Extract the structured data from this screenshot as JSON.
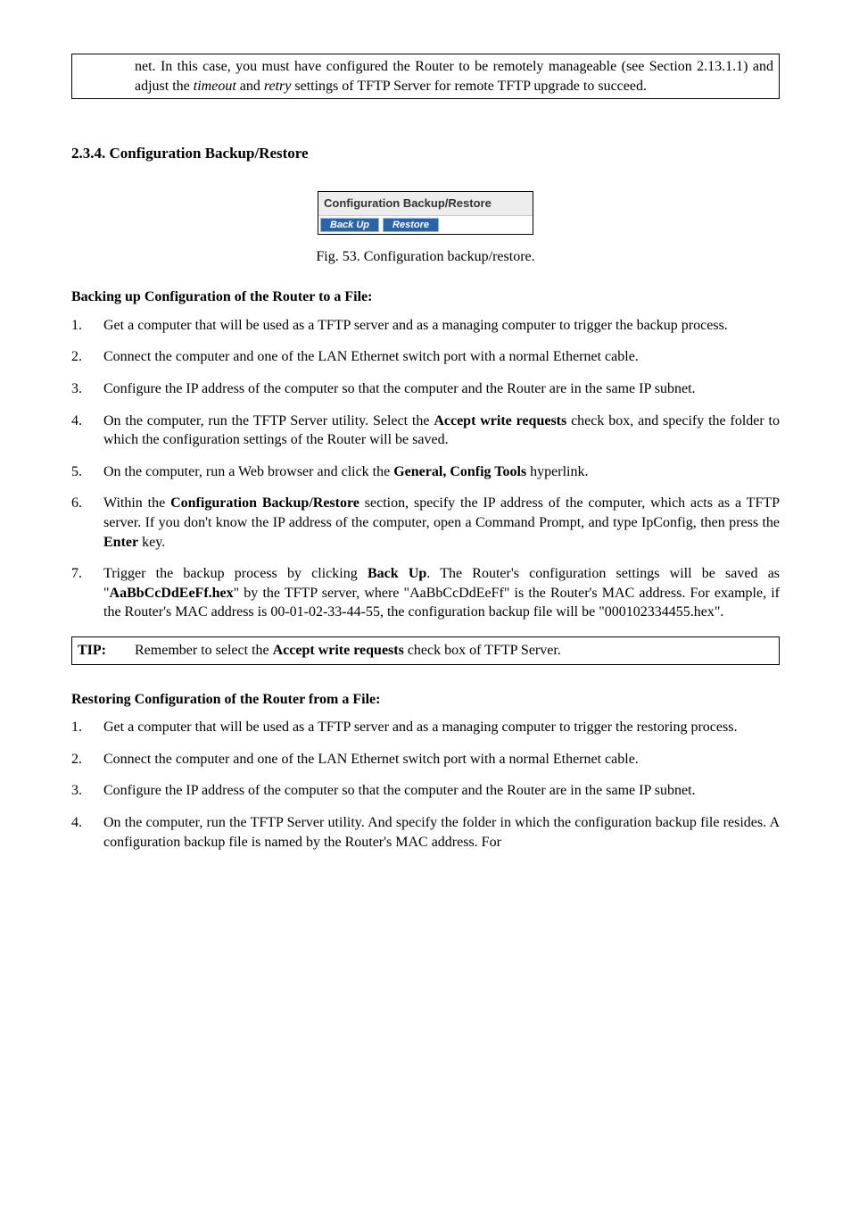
{
  "note_box": {
    "text_1": "net. In this case, you must have configured the Router to be remotely manageable (see Section 2.13.1.1) and adjust the ",
    "italic_1": "timeout",
    "text_2": " and ",
    "italic_2": "retry",
    "text_3": " settings of TFTP Server for remote TFTP upgrade to succeed."
  },
  "section_heading": "2.3.4. Configuration Backup/Restore",
  "panel": {
    "title": "Configuration Backup/Restore",
    "backup_label": "Back Up",
    "restore_label": "Restore"
  },
  "fig_caption": "Fig. 53. Configuration backup/restore.",
  "backup_heading": "Backing up Configuration of the Router to a File:",
  "backup_steps": [
    {
      "parts": [
        {
          "t": "Get a computer that will be used as a TFTP server and as a managing computer to trigger the backup process."
        }
      ]
    },
    {
      "parts": [
        {
          "t": "Connect the computer and one of the LAN Ethernet switch port with a normal Ethernet cable."
        }
      ]
    },
    {
      "parts": [
        {
          "t": "Configure the IP address of the computer so that the computer and the Router are in the same IP subnet."
        }
      ]
    },
    {
      "parts": [
        {
          "t": "On the computer, run the TFTP Server utility. Select the "
        },
        {
          "t": "Accept write requests",
          "cls": "bold"
        },
        {
          "t": " check box, and specify the folder to which the configuration settings of the Router will be saved."
        }
      ]
    },
    {
      "parts": [
        {
          "t": "On the computer, run a Web browser and click the "
        },
        {
          "t": "General, Config Tools",
          "cls": "bold"
        },
        {
          "t": " hyperlink."
        }
      ]
    },
    {
      "parts": [
        {
          "t": "Within the "
        },
        {
          "t": "Configuration Backup/Restore",
          "cls": "bold"
        },
        {
          "t": " section, specify the IP address of the computer, which acts as a TFTP server. If you don't know the IP address of the computer, open a Command Prompt, and type IpConfig, then press the "
        },
        {
          "t": "Enter",
          "cls": "bold"
        },
        {
          "t": " key."
        }
      ]
    },
    {
      "parts": [
        {
          "t": "Trigger the backup process by clicking "
        },
        {
          "t": "Back Up",
          "cls": "bold"
        },
        {
          "t": ". The Router's configuration settings will be saved as \""
        },
        {
          "t": "AaBbCcDdEeFf.hex",
          "cls": "bold"
        },
        {
          "t": "\" by the TFTP server, where \"AaBbCcDdEeFf\" is the Router's MAC address. For example, if the Router's MAC address is 00-01-02-33-44-55, the configuration backup file will be \"000102334455.hex\"."
        }
      ]
    }
  ],
  "tip_box": {
    "label": "TIP:",
    "text_1": "Remember to select the ",
    "bold_1": "Accept write requests",
    "text_2": " check box of TFTP Server."
  },
  "restore_heading": "Restoring Configuration of the Router from a File:",
  "restore_steps": [
    {
      "parts": [
        {
          "t": "Get a computer that will be used as a TFTP server and as a managing computer to trigger the restoring process."
        }
      ]
    },
    {
      "parts": [
        {
          "t": "Connect the computer and one of the LAN Ethernet switch port with a normal Ethernet cable."
        }
      ]
    },
    {
      "parts": [
        {
          "t": "Configure the IP address of the computer so that the computer and the Router are in the same IP subnet."
        }
      ]
    },
    {
      "parts": [
        {
          "t": "On the computer, run the TFTP Server utility. And specify the folder in which the configuration backup file resides. A configuration backup file is named by the Router's MAC address. For"
        }
      ]
    }
  ]
}
